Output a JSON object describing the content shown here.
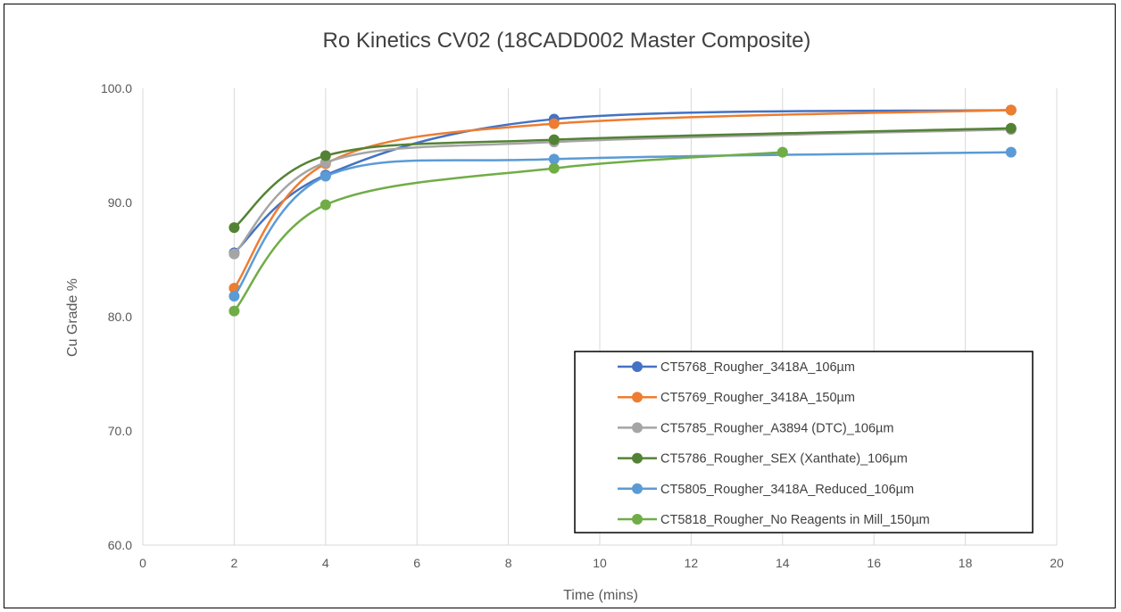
{
  "chart_data": {
    "type": "line",
    "title": "Ro Kinetics CV02 (18CADD002 Master Composite)",
    "xlabel": "Time (mins)",
    "ylabel": "Cu Grade %",
    "xlim": [
      0,
      20
    ],
    "ylim": [
      60,
      100
    ],
    "x_ticks": [
      "0",
      "2",
      "4",
      "6",
      "8",
      "10",
      "12",
      "14",
      "16",
      "18",
      "20"
    ],
    "y_ticks": [
      "60.0",
      "70.0",
      "80.0",
      "90.0",
      "100.0"
    ],
    "grid": "vertical",
    "legend_position": "bottom-right",
    "series": [
      {
        "name": "CT5768_Rougher_3418A_106µm",
        "color": "#4472C4",
        "x": [
          2,
          4,
          9,
          19
        ],
        "y": [
          85.6,
          92.4,
          97.3,
          98.1
        ]
      },
      {
        "name": "CT5769_Rougher_3418A_150µm",
        "color": "#ED7D31",
        "x": [
          2,
          4,
          9,
          19
        ],
        "y": [
          82.5,
          93.4,
          96.9,
          98.1
        ]
      },
      {
        "name": "CT5785_Rougher_A3894 (DTC)_106µm",
        "color": "#A5A5A5",
        "x": [
          2,
          4,
          9,
          19
        ],
        "y": [
          85.5,
          93.5,
          95.3,
          96.4
        ]
      },
      {
        "name": "CT5786_Rougher_SEX (Xanthate)_106µm",
        "color": "#548235",
        "x": [
          2,
          4,
          9,
          19
        ],
        "y": [
          87.8,
          94.1,
          95.5,
          96.5
        ]
      },
      {
        "name": "CT5805_Rougher_3418A_Reduced_106µm",
        "color": "#5B9BD5",
        "x": [
          2,
          4,
          9,
          19
        ],
        "y": [
          81.8,
          92.3,
          93.8,
          94.4
        ]
      },
      {
        "name": "CT5818_Rougher_No Reagents in Mill_150µm",
        "color": "#70AD47",
        "x": [
          2,
          4,
          9,
          14
        ],
        "y": [
          80.5,
          89.8,
          93.0,
          94.4
        ]
      }
    ]
  }
}
